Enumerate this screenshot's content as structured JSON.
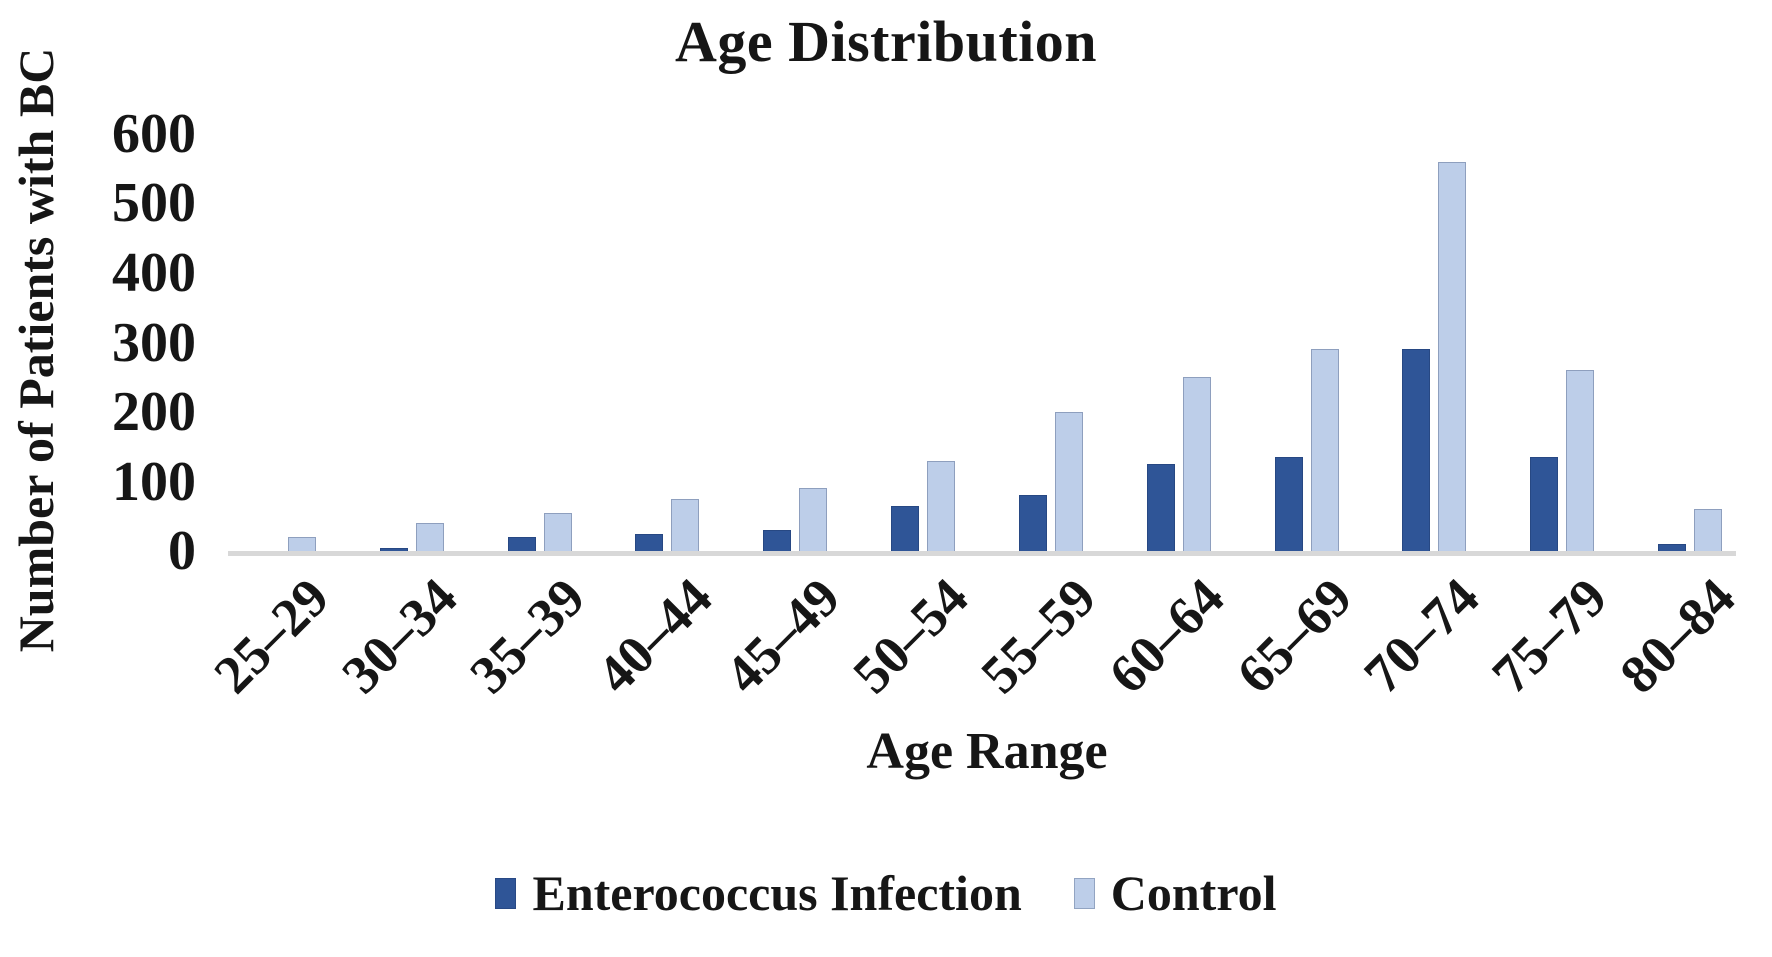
{
  "title": "Age Distribution",
  "x_axis_title": "Age Range",
  "y_axis_title": "Number of Patients with BC",
  "colors": {
    "series_dark_blue": "#2F5597",
    "series_light_blue": "#BDCEE9",
    "axis_line": "#D8D8D8",
    "text": "#161616",
    "background": "#FFFFFF"
  },
  "chart_data": {
    "type": "bar",
    "title": "Age Distribution",
    "xlabel": "Age Range",
    "ylabel": "Number of Patients with BC",
    "categories": [
      "25–29",
      "30–34",
      "35–39",
      "40–44",
      "45–49",
      "50–54",
      "55–59",
      "60–64",
      "65–69",
      "70–74",
      "75–79",
      "80–84"
    ],
    "series": [
      {
        "name": "Enterococcus Infection",
        "color": "#2F5597",
        "values": [
          0,
          5,
          20,
          25,
          30,
          65,
          80,
          125,
          135,
          290,
          135,
          10
        ]
      },
      {
        "name": "Control",
        "color": "#BDCEE9",
        "values": [
          20,
          40,
          55,
          75,
          90,
          130,
          200,
          250,
          290,
          560,
          260,
          60
        ]
      }
    ],
    "ylim": [
      0,
      600
    ],
    "yticks": [
      0,
      100,
      200,
      300,
      400,
      500,
      600
    ],
    "grid": false,
    "legend_position": "bottom"
  }
}
